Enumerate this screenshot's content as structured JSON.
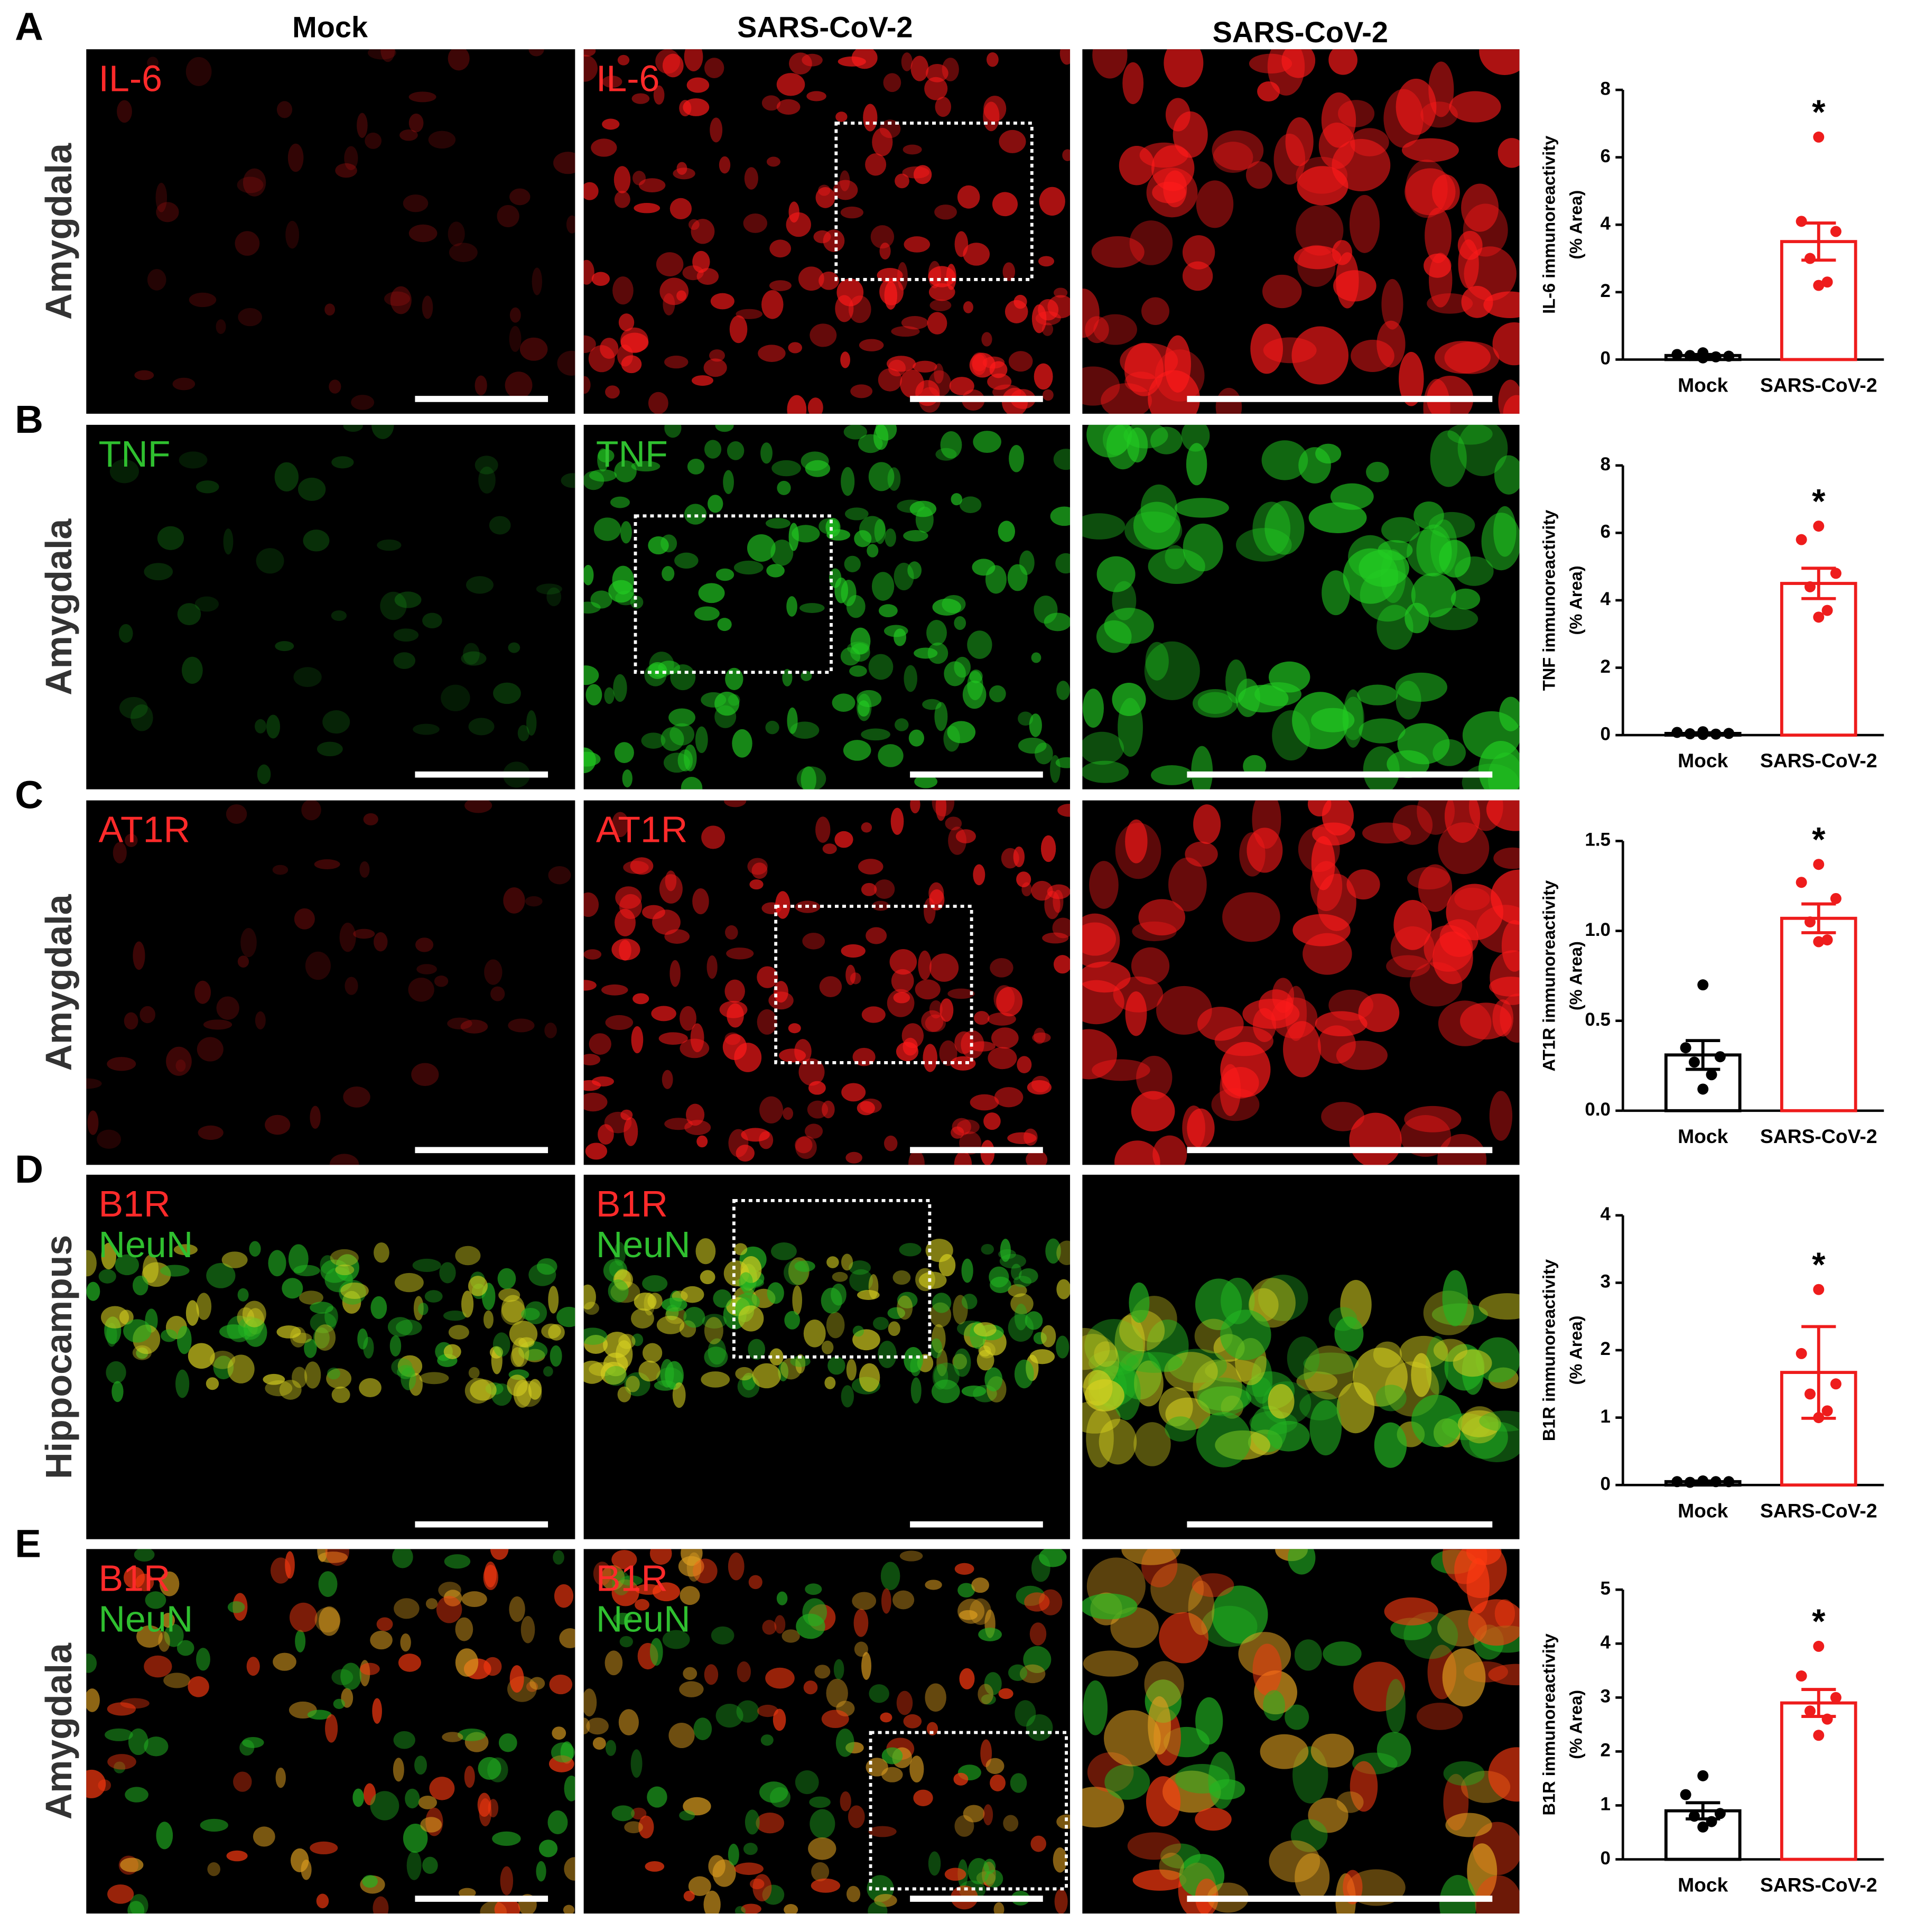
{
  "columns": [
    "Mock",
    "SARS-CoV-2",
    "SARS-CoV-2"
  ],
  "panels": [
    {
      "label": "A",
      "region": "Amygdala",
      "stains": [
        {
          "text": "IL-6",
          "color": "#ff2a2a"
        }
      ]
    },
    {
      "label": "B",
      "region": "Amygdala",
      "stains": [
        {
          "text": "TNF",
          "color": "#2fbf2f"
        }
      ]
    },
    {
      "label": "C",
      "region": "Amygdala",
      "stains": [
        {
          "text": "AT1R",
          "color": "#ff2a2a"
        }
      ]
    },
    {
      "label": "D",
      "region": "Hippocampus",
      "stains": [
        {
          "text": "B1R",
          "color": "#ff2a2a"
        },
        {
          "text": "NeuN",
          "color": "#2fbf2f"
        }
      ]
    },
    {
      "label": "E",
      "region": "Amygdala",
      "stains": [
        {
          "text": "B1R",
          "color": "#ff2a2a"
        },
        {
          "text": "NeuN",
          "color": "#2fbf2f"
        }
      ]
    }
  ],
  "chart_data": [
    {
      "type": "bar",
      "ylabel": [
        "IL-6 immunoreactivity",
        "(% Area)"
      ],
      "annotation": "*",
      "categories": [
        "Mock",
        "SARS-CoV-2"
      ],
      "colors": [
        "#000000",
        "#ee1c1c"
      ],
      "values": [
        0.12,
        3.5
      ],
      "errors": [
        0.03,
        0.55
      ],
      "points": [
        [
          0.2,
          0.15,
          0.1,
          0.12,
          0.08,
          0.05
        ],
        [
          6.6,
          4.1,
          3.8,
          3.0,
          2.3,
          2.2
        ]
      ],
      "ylim": [
        0,
        8
      ],
      "yticks": [
        0,
        2,
        4,
        6,
        8
      ]
    },
    {
      "type": "bar",
      "ylabel": [
        "TNF immunoreactivity",
        "(% Area)"
      ],
      "annotation": "*",
      "categories": [
        "Mock",
        "SARS-CoV-2"
      ],
      "colors": [
        "#000000",
        "#ee1c1c"
      ],
      "values": [
        0.05,
        4.5
      ],
      "errors": [
        0.02,
        0.45
      ],
      "points": [
        [
          0.1,
          0.08,
          0.05,
          0.04,
          0.03,
          0.02
        ],
        [
          6.2,
          5.8,
          4.8,
          4.4,
          3.7,
          3.5
        ]
      ],
      "ylim": [
        0,
        8
      ],
      "yticks": [
        0,
        2,
        4,
        6,
        8
      ]
    },
    {
      "type": "bar",
      "ylabel": [
        "AT1R immunoreactivity",
        "(% Area)"
      ],
      "annotation": "*",
      "categories": [
        "Mock",
        "SARS-CoV-2"
      ],
      "colors": [
        "#000000",
        "#ee1c1c"
      ],
      "values": [
        0.31,
        1.07
      ],
      "errors": [
        0.08,
        0.08
      ],
      "points": [
        [
          0.7,
          0.35,
          0.3,
          0.27,
          0.2,
          0.12
        ],
        [
          1.37,
          1.27,
          1.18,
          1.05,
          0.95,
          0.94
        ]
      ],
      "ylim": [
        0,
        1.5
      ],
      "yticks": [
        {
          "value": 0,
          "label": "0.0"
        },
        0.5,
        {
          "value": 1,
          "label": "1.0"
        },
        1.5
      ]
    },
    {
      "type": "bar",
      "ylabel": [
        "B1R immunoreactivity",
        "(% Area)"
      ],
      "annotation": "*",
      "categories": [
        "Mock",
        "SARS-CoV-2"
      ],
      "colors": [
        "#000000",
        "#ee1c1c"
      ],
      "values": [
        0.05,
        1.67
      ],
      "errors": [
        0.01,
        0.68
      ],
      "points": [
        [
          0.06,
          0.05,
          0.05,
          0.04,
          0.05,
          0.06
        ],
        [
          2.9,
          1.95,
          1.5,
          1.35,
          1.1,
          1.0
        ]
      ],
      "ylim": [
        0,
        4
      ],
      "yticks": [
        0,
        1,
        2,
        3,
        4
      ]
    },
    {
      "type": "bar",
      "ylabel": [
        "B1R immunoreactivity",
        "(% Area)"
      ],
      "annotation": "*",
      "categories": [
        "Mock",
        "SARS-CoV-2"
      ],
      "colors": [
        "#000000",
        "#ee1c1c"
      ],
      "values": [
        0.9,
        2.9
      ],
      "errors": [
        0.15,
        0.25
      ],
      "points": [
        [
          1.55,
          1.2,
          0.85,
          0.8,
          0.7,
          0.6
        ],
        [
          3.95,
          3.4,
          3.0,
          2.75,
          2.6,
          2.3
        ]
      ],
      "ylim": [
        0,
        5
      ],
      "yticks": [
        0,
        1,
        2,
        3,
        4,
        5
      ]
    }
  ]
}
